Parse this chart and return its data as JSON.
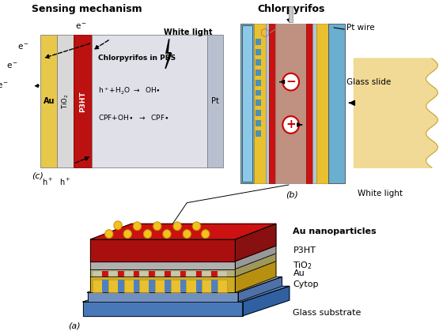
{
  "bg_color": "#ffffff",
  "panel_c": {
    "label": "(c)",
    "title": "Sensing mechanism",
    "au_color": "#E8C84A",
    "au_dark": "#C8A030",
    "tio2_color": "#D8D8D8",
    "p3ht_color": "#BB1111",
    "solution_color": "#E0E0E8",
    "pt_color": "#B8C0D0",
    "white_light": "White light",
    "text1": "Chlorpyrifos in PBS",
    "text2": "h$^+$+H$_2$O $\\rightarrow$  OH•",
    "text3": "CPF+OH•  $\\rightarrow$  CPF•"
  },
  "panel_b": {
    "label": "(b)",
    "chlorpyrifos_label": "Chlorpyrifos",
    "pt_wire_label": "Pt wire",
    "glass_slide_label": "Glass slide",
    "white_light_label": "White light",
    "glass_color": "#7AAECC",
    "glass_dark": "#5090B0",
    "au_teeth_color": "#E8C030",
    "p3ht_color": "#CC1111",
    "tio2_color": "#C8C8C8",
    "solution_color": "#C09080",
    "pt_wire_color": "#C0C0C0",
    "waveguide_color": "#F0D890"
  },
  "panel_a": {
    "label": "(a)",
    "layers": [
      "Au nanoparticles",
      "P3HT",
      "TiO$_2$",
      "Au",
      "Cytop",
      "Glass substrate"
    ],
    "p3ht_top": "#CC1111",
    "p3ht_front": "#AA0F0F",
    "p3ht_side": "#881010",
    "tio2_top": "#C8C8C8",
    "tio2_front": "#B0B0B0",
    "tio2_side": "#989898",
    "au_top": "#D0C890",
    "au_front": "#B8B070",
    "au_side": "#A09858",
    "cytop_top": "#E8C030",
    "cytop_front": "#D0AA20",
    "cytop_side": "#B89010",
    "glass_top": "#6090CC",
    "glass_front": "#4878B8",
    "glass_side": "#3060A0",
    "glass2_top": "#90B8E0",
    "glass2_front": "#7090C0",
    "glass2_side": "#5070A8",
    "np_color": "#F5C020",
    "np_edge": "#C09000"
  }
}
